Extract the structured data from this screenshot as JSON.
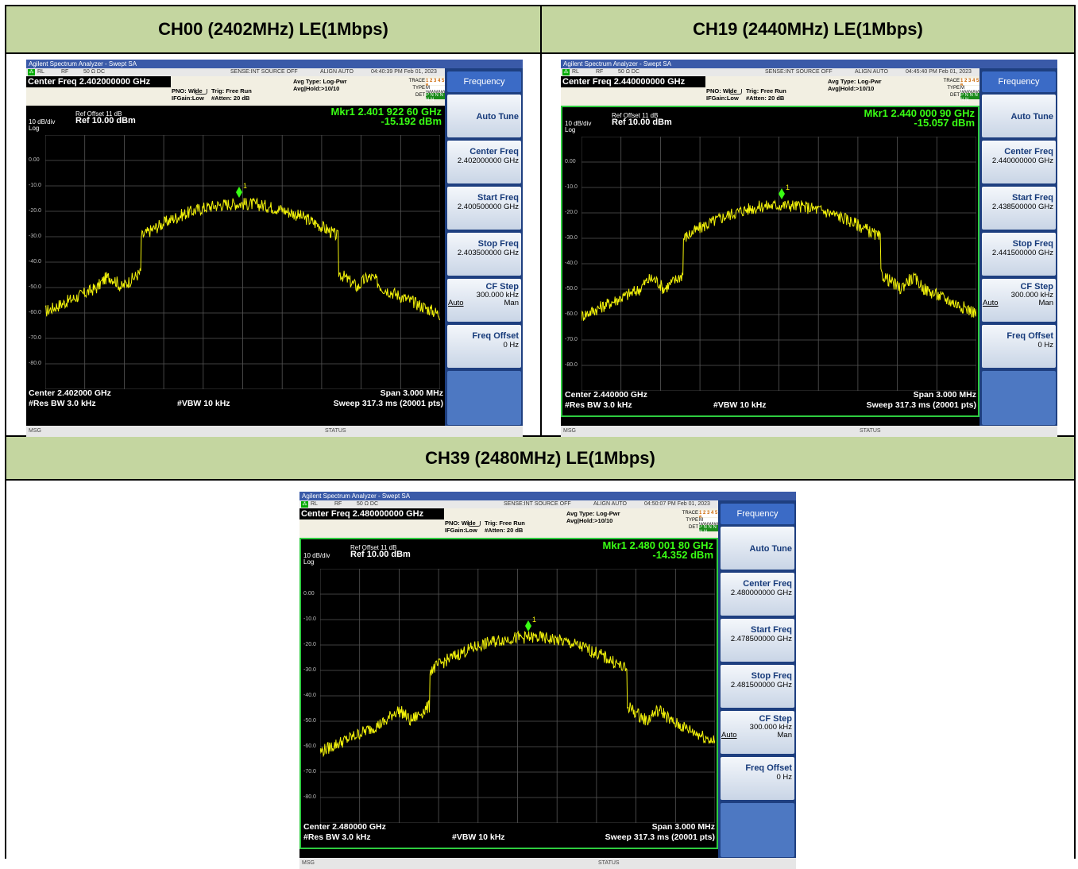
{
  "headers": {
    "ch00": "CH00 (2402MHz) LE(1Mbps)",
    "ch19": "CH19 (2440MHz) LE(1Mbps)",
    "ch39": "CH39 (2480MHz) LE(1Mbps)"
  },
  "common": {
    "title_bar": "Agilent Spectrum Analyzer - Swept SA",
    "rl": "RL",
    "rf": "RF",
    "ohm": "50 Ω  DC",
    "sense": "SENSE:INT  SOURCE OFF",
    "align": "ALIGN AUTO",
    "pno": "PNO: Wide",
    "ifgain": "IFGain:Low",
    "trig": "Trig: Free Run",
    "atten": "#Atten: 20 dB",
    "avg_type": "Avg Type: Log-Pwr",
    "avg_hold": "Avg|Hold:>10/10",
    "trace": "TRACE",
    "type": "TYPE",
    "det": "DET",
    "trace_nums": "1 2 3 4 5 6",
    "type_vals": "M WWWWW",
    "det_vals": "P N N N N N",
    "ref_offset": "Ref Offset 11 dB",
    "scale": "10 dB/div",
    "log": "Log",
    "ref_level": "Ref 10.00 dBm",
    "y_labels": [
      "0.00",
      "-10.0",
      "-20.0",
      "-30.0",
      "-40.0",
      "-50.0",
      "-60.0",
      "-70.0",
      "-80.0"
    ],
    "span": "Span 3.000 MHz",
    "rbw": "#Res BW 3.0 kHz",
    "vbw": "#VBW 10 kHz",
    "sweep": "Sweep  317.3 ms (20001 pts)",
    "msg": "MSG",
    "status": "STATUS",
    "menu_title": "Frequency",
    "auto_tune": "Auto Tune",
    "center_freq_label": "Center Freq",
    "start_freq_label": "Start Freq",
    "stop_freq_label": "Stop Freq",
    "cf_step_label": "CF Step",
    "cf_step_value": "300.000 kHz",
    "auto": "Auto",
    "man": "Man",
    "freq_offset_label": "Freq Offset",
    "freq_offset_value": "0 Hz",
    "marker_num": "1",
    "colors": {
      "header_bg": "#c4d6a0",
      "trace": "#f2f20a",
      "marker": "#39ff14",
      "softkey_bg": "#1e3f80"
    }
  },
  "panels": [
    {
      "time": "04:40:39 PM Feb 01, 2023",
      "center_freq_title": "Center Freq 2.402000000 GHz",
      "marker_freq": "Mkr1 2.401 922 60 GHz",
      "marker_level": "-15.192 dBm",
      "center_bottom": "Center 2.402000 GHz",
      "center_freq_value": "2.402000000 GHz",
      "start_freq_value": "2.400500000 GHz",
      "stop_freq_value": "2.403500000 GHz"
    },
    {
      "time": "04:45:40 PM Feb 01, 2023",
      "center_freq_title": "Center Freq 2.440000000 GHz",
      "marker_freq": "Mkr1 2.440 000 90 GHz",
      "marker_level": "-15.057 dBm",
      "center_bottom": "Center 2.440000 GHz",
      "center_freq_value": "2.440000000 GHz",
      "start_freq_value": "2.438500000 GHz",
      "stop_freq_value": "2.441500000 GHz"
    },
    {
      "time": "04:50:07 PM Feb 01, 2023",
      "center_freq_title": "Center Freq 2.480000000 GHz",
      "marker_freq": "Mkr1 2.480 001 80 GHz",
      "marker_level": "-14.352 dBm",
      "center_bottom": "Center 2.480000 GHz",
      "center_freq_value": "2.480000000 GHz",
      "start_freq_value": "2.478500000 GHz",
      "stop_freq_value": "2.481500000 GHz"
    }
  ]
}
